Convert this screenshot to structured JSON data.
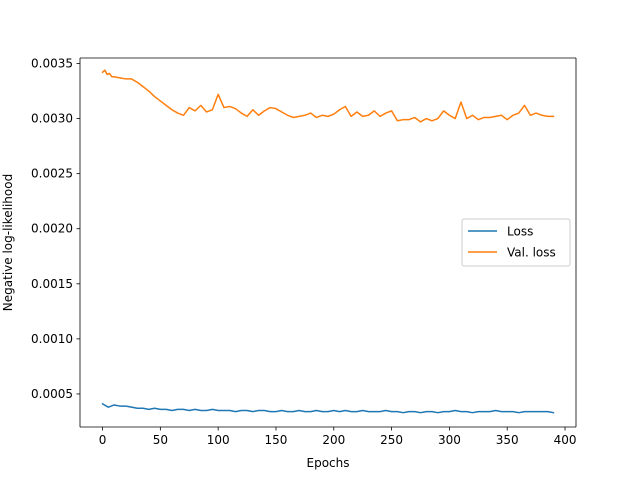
{
  "chart_data": {
    "type": "line",
    "xlabel": "Epochs",
    "ylabel": "Negative log-likelihood",
    "xlim": [
      -19.5,
      409.5
    ],
    "ylim": [
      0.0002,
      0.00355
    ],
    "xticks": [
      0,
      50,
      100,
      150,
      200,
      250,
      300,
      350,
      400
    ],
    "xtick_labels": [
      "0",
      "50",
      "100",
      "150",
      "200",
      "250",
      "300",
      "350",
      "400"
    ],
    "yticks": [
      0.0005,
      0.001,
      0.0015,
      0.002,
      0.0025,
      0.003,
      0.0035
    ],
    "ytick_labels": [
      "0.0005",
      "0.0010",
      "0.0015",
      "0.0020",
      "0.0025",
      "0.0030",
      "0.0035"
    ],
    "grid": false,
    "legend_position": "center-right",
    "series": [
      {
        "name": "Loss",
        "color": "#1f77b4",
        "x": [
          0,
          5,
          10,
          15,
          20,
          25,
          30,
          35,
          40,
          45,
          50,
          55,
          60,
          65,
          70,
          75,
          80,
          85,
          90,
          95,
          100,
          105,
          110,
          115,
          120,
          125,
          130,
          135,
          140,
          145,
          150,
          155,
          160,
          165,
          170,
          175,
          180,
          185,
          190,
          195,
          200,
          205,
          210,
          215,
          220,
          225,
          230,
          235,
          240,
          245,
          250,
          255,
          260,
          265,
          270,
          275,
          280,
          285,
          290,
          295,
          300,
          305,
          310,
          315,
          320,
          325,
          330,
          335,
          340,
          345,
          350,
          355,
          360,
          365,
          370,
          375,
          380,
          385,
          390
        ],
        "y": [
          0.00041,
          0.00038,
          0.0004,
          0.00039,
          0.00039,
          0.00038,
          0.00037,
          0.00037,
          0.00036,
          0.00037,
          0.00036,
          0.00036,
          0.00035,
          0.00036,
          0.00036,
          0.00035,
          0.00036,
          0.00035,
          0.00035,
          0.00036,
          0.00035,
          0.00035,
          0.00035,
          0.00034,
          0.00035,
          0.00035,
          0.00034,
          0.00035,
          0.00035,
          0.00034,
          0.00034,
          0.00035,
          0.00034,
          0.00034,
          0.00035,
          0.00034,
          0.00034,
          0.00035,
          0.00034,
          0.00034,
          0.00035,
          0.00034,
          0.00035,
          0.00034,
          0.00034,
          0.00035,
          0.00034,
          0.00034,
          0.00034,
          0.00035,
          0.00034,
          0.00034,
          0.00033,
          0.00034,
          0.00034,
          0.00033,
          0.00034,
          0.00034,
          0.00033,
          0.00034,
          0.00034,
          0.00035,
          0.00034,
          0.00034,
          0.00033,
          0.00034,
          0.00034,
          0.00034,
          0.00035,
          0.00034,
          0.00034,
          0.00034,
          0.00033,
          0.00034,
          0.00034,
          0.00034,
          0.00034,
          0.00034,
          0.00033
        ]
      },
      {
        "name": "Val. loss",
        "color": "#ff7f0e",
        "x": [
          0,
          2,
          4,
          6,
          8,
          10,
          15,
          20,
          25,
          30,
          35,
          40,
          45,
          50,
          55,
          60,
          65,
          70,
          75,
          80,
          85,
          90,
          95,
          100,
          105,
          110,
          115,
          120,
          125,
          130,
          135,
          140,
          145,
          150,
          155,
          160,
          165,
          170,
          175,
          180,
          185,
          190,
          195,
          200,
          205,
          210,
          215,
          220,
          225,
          230,
          235,
          240,
          245,
          250,
          255,
          260,
          265,
          270,
          275,
          280,
          285,
          290,
          295,
          300,
          305,
          310,
          315,
          320,
          325,
          330,
          335,
          340,
          345,
          350,
          355,
          360,
          365,
          370,
          375,
          380,
          385,
          390
        ],
        "y": [
          0.00342,
          0.00344,
          0.0034,
          0.00341,
          0.00338,
          0.00338,
          0.00337,
          0.00336,
          0.00336,
          0.00333,
          0.00329,
          0.00325,
          0.0032,
          0.00316,
          0.00312,
          0.00308,
          0.00305,
          0.00303,
          0.0031,
          0.00307,
          0.00312,
          0.00306,
          0.00308,
          0.00322,
          0.0031,
          0.00311,
          0.00309,
          0.00305,
          0.00302,
          0.00308,
          0.00303,
          0.00307,
          0.0031,
          0.00309,
          0.00306,
          0.00303,
          0.00301,
          0.00302,
          0.00303,
          0.00305,
          0.00301,
          0.00303,
          0.00302,
          0.00304,
          0.00308,
          0.00311,
          0.00302,
          0.00306,
          0.00302,
          0.00303,
          0.00307,
          0.00302,
          0.00305,
          0.00307,
          0.00298,
          0.00299,
          0.00299,
          0.00301,
          0.00297,
          0.003,
          0.00298,
          0.003,
          0.00307,
          0.00303,
          0.003,
          0.00315,
          0.003,
          0.00303,
          0.00299,
          0.00301,
          0.00301,
          0.00302,
          0.00303,
          0.00299,
          0.00303,
          0.00305,
          0.00312,
          0.00303,
          0.00305,
          0.00303,
          0.00302,
          0.00302
        ]
      }
    ]
  }
}
